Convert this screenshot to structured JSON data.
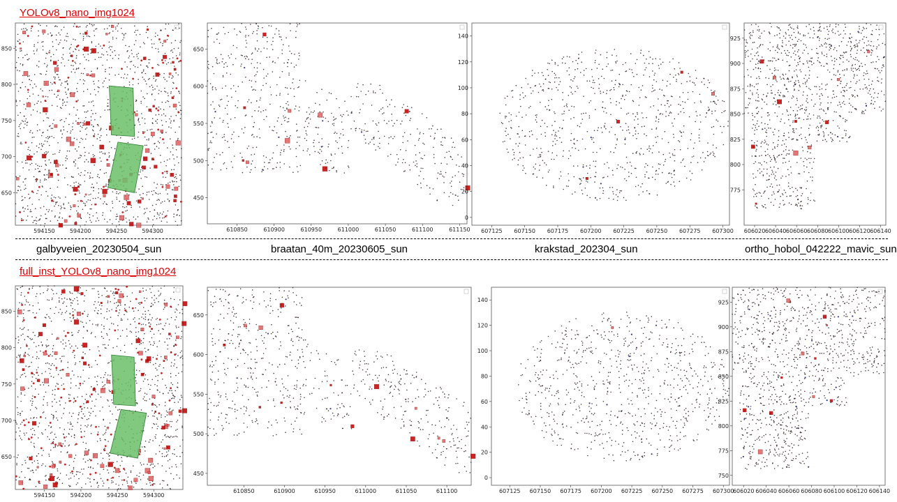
{
  "rows": [
    {
      "title": "YOLOv8_nano_img1024"
    },
    {
      "title": "full_inst_YOLOv8_nano_img1024"
    }
  ],
  "site_labels": [
    "galbyveien_20230504_sun",
    "braatan_40m_20230605_sun",
    "krakstad_202304_sun",
    "ortho_hobol_042222_mavic_sun"
  ],
  "colors": {
    "detection_red": "#c00000",
    "detection_blue": "#1a1a6e",
    "point_dark": "#2a1a1a",
    "reference_area_green": "#6abf69"
  },
  "chart_data": [
    {
      "type": "scatter",
      "row": 0,
      "site": "galbyveien_20230504_sun",
      "xlim": [
        594110,
        594340
      ],
      "ylim": [
        605,
        885
      ],
      "xticks": [
        594150,
        594200,
        594250,
        594300
      ],
      "yticks": [
        650,
        700,
        750,
        800,
        850
      ],
      "green_areas": [
        [
          [
            594240,
            798
          ],
          [
            594273,
            795
          ],
          [
            594275,
            728
          ],
          [
            594243,
            730
          ]
        ],
        [
          [
            594252,
            720
          ],
          [
            594287,
            715
          ],
          [
            594275,
            650
          ],
          [
            594238,
            657
          ]
        ]
      ]
    },
    {
      "type": "scatter",
      "row": 0,
      "site": "braatan_40m_20230605_sun",
      "xlim": [
        610810,
        611160
      ],
      "ylim": [
        415,
        685
      ],
      "xticks": [
        610850,
        610900,
        610950,
        611000,
        611050,
        611100,
        611150
      ],
      "yticks": [
        450,
        500,
        550,
        600,
        650
      ],
      "green_areas": []
    },
    {
      "type": "scatter",
      "row": 0,
      "site": "krakstad_202304_sun",
      "xlim": [
        607110,
        607305
      ],
      "ylim": [
        -6,
        150
      ],
      "xticks": [
        607125,
        607150,
        607175,
        607200,
        607225,
        607250,
        607275,
        607300
      ],
      "yticks": [
        0,
        20,
        40,
        60,
        80,
        100,
        120,
        140
      ],
      "green_areas": []
    },
    {
      "type": "scatter",
      "row": 0,
      "site": "ortho_hobol_042222_mavic_sun",
      "xlim": [
        606010,
        606145
      ],
      "ylim": [
        740,
        940
      ],
      "xticks": [
        606020,
        606040,
        606060,
        606080,
        606100,
        606120,
        606140
      ],
      "yticks": [
        775,
        800,
        825,
        850,
        875,
        900,
        925
      ],
      "green_areas": []
    },
    {
      "type": "scatter",
      "row": 1,
      "site": "galbyveien_20230504_sun",
      "xlim": [
        594110,
        594340
      ],
      "ylim": [
        605,
        885
      ],
      "xticks": [
        594150,
        594200,
        594250,
        594300
      ],
      "yticks": [
        650,
        700,
        750,
        800,
        850
      ],
      "green_areas": [
        [
          [
            594242,
            790
          ],
          [
            594273,
            787
          ],
          [
            594275,
            720
          ],
          [
            594245,
            722
          ]
        ],
        [
          [
            594255,
            715
          ],
          [
            594290,
            710
          ],
          [
            594278,
            648
          ],
          [
            594240,
            655
          ]
        ]
      ]
    },
    {
      "type": "scatter",
      "row": 1,
      "site": "braatan_40m_20230605_sun",
      "xlim": [
        610805,
        611130
      ],
      "ylim": [
        435,
        685
      ],
      "xticks": [
        610850,
        610900,
        610950,
        611000,
        611050,
        611100
      ],
      "yticks": [
        450,
        500,
        550,
        600,
        650
      ],
      "green_areas": []
    },
    {
      "type": "scatter",
      "row": 1,
      "site": "krakstad_202304_sun",
      "xlim": [
        607110,
        607305
      ],
      "ylim": [
        -6,
        150
      ],
      "xticks": [
        607125,
        607150,
        607175,
        607200,
        607225,
        607250,
        607275,
        607300
      ],
      "yticks": [
        0,
        20,
        40,
        60,
        80,
        100,
        120,
        140
      ],
      "green_areas": []
    },
    {
      "type": "scatter",
      "row": 1,
      "site": "ortho_hobol_042222_mavic_sun",
      "xlim": [
        606010,
        606145
      ],
      "ylim": [
        740,
        940
      ],
      "xticks": [
        606020,
        606040,
        606060,
        606080,
        606100,
        606120,
        606140
      ],
      "yticks": [
        750,
        775,
        800,
        825,
        850,
        875,
        900,
        925
      ],
      "green_areas": []
    }
  ]
}
